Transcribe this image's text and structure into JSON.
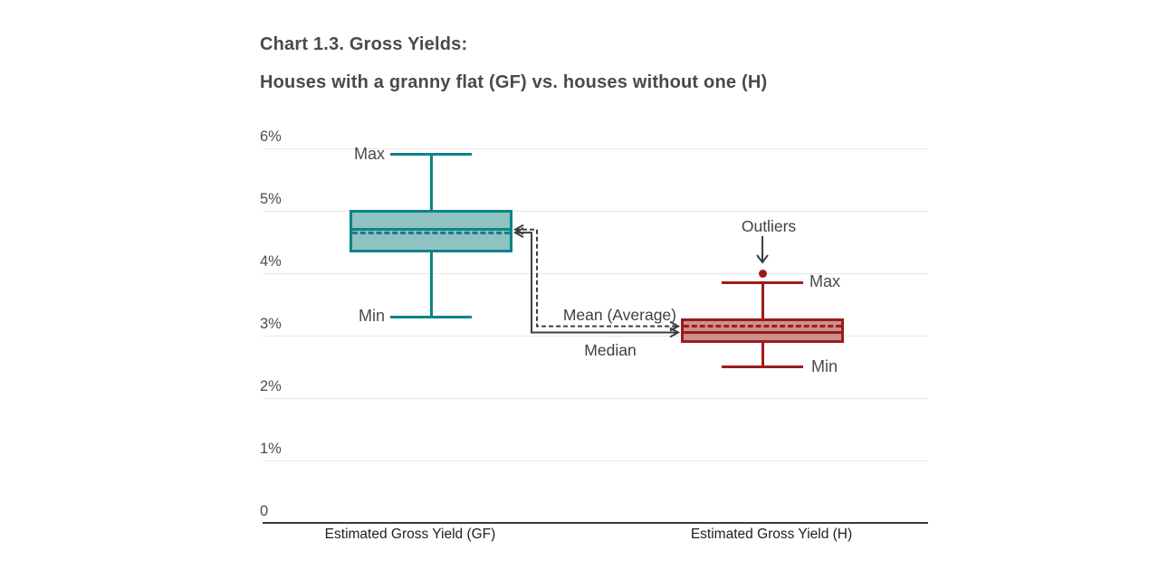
{
  "chart_data": {
    "type": "boxplot",
    "title": "Chart 1.3. Gross Yields:",
    "subtitle": "Houses with a granny flat (GF) vs. houses without one (H)",
    "categories": [
      "Estimated Gross Yield (GF)",
      "Estimated Gross Yield (H)"
    ],
    "y_axis": {
      "unit": "percent",
      "min": 0,
      "max": 6,
      "grid": true,
      "ticks": [
        {
          "value": 0,
          "label": "0"
        },
        {
          "value": 1,
          "label": "1%"
        },
        {
          "value": 2,
          "label": "2%"
        },
        {
          "value": 3,
          "label": "3%"
        },
        {
          "value": 4,
          "label": "4%"
        },
        {
          "value": 5,
          "label": "5%"
        },
        {
          "value": 6,
          "label": "6%"
        }
      ]
    },
    "series": [
      {
        "name": "GF",
        "category": "Estimated Gross Yield (GF)",
        "min": 3.3,
        "q1": 4.35,
        "median": 4.7,
        "mean": 4.65,
        "q3": 5.0,
        "max": 5.9,
        "outliers": [],
        "stroke": "#0E8388",
        "fill": "#8FC2C1",
        "labels": {
          "max": "Max",
          "min": "Min"
        },
        "label_side": "left"
      },
      {
        "name": "H",
        "category": "Estimated Gross Yield (H)",
        "min": 2.5,
        "q1": 2.9,
        "median": 3.05,
        "mean": 3.15,
        "q3": 3.25,
        "max": 3.85,
        "outliers": [
          4.0
        ],
        "stroke": "#9E1B1B",
        "fill": "#C9908E",
        "labels": {
          "max": "Max",
          "min": "Min"
        },
        "label_side": "right"
      }
    ],
    "annotations": {
      "mean": "Mean (Average)",
      "median": "Median",
      "outliers": "Outliers"
    },
    "legend": "none",
    "colors": {
      "annotation": "#3F3F3F",
      "grid": "#E8E8E8",
      "axis": "#3A3A3A",
      "text": "#4A4A4A"
    }
  }
}
